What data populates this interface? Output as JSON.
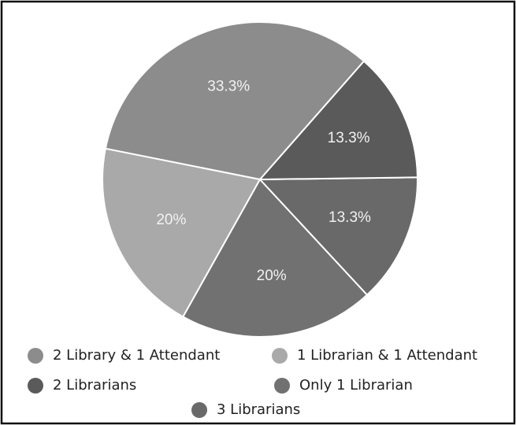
{
  "chart_data": {
    "type": "pie",
    "categories": [
      "2 Library & 1 Attendant",
      "1 Librarian & 1 Attendant",
      "Only 1 Librarian",
      "3 Librarians",
      "2 Librarians"
    ],
    "values": [
      33.3,
      20,
      20,
      13.3,
      13.3
    ],
    "value_labels": [
      "33.3%",
      "20%",
      "20%",
      "13.3%",
      "13.3%"
    ],
    "colors": [
      "#8c8c8c",
      "#a9a9a9",
      "#717171",
      "#696969",
      "#5a5a5a"
    ]
  }
}
